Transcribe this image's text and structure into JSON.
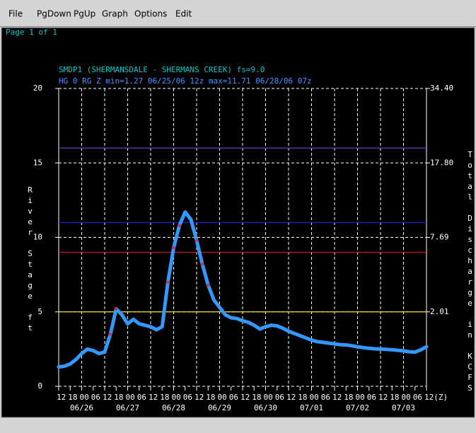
{
  "menu": [
    "File",
    "PgDown",
    "PgUp",
    "Graph",
    "Options",
    "Edit"
  ],
  "page_label": "Page 1 of 1",
  "chart_data": {
    "type": "line",
    "title": "SMDP1 (SHERMANSDALE - SHERMANS CREEK) fs=9.0",
    "subtitle": "HG 0 RG Z min=1.27 06/25/06 12z max=11.71 06/28/06 07z",
    "ylabel": "River Stage ft",
    "y2label": "Total Discharge in KCFS",
    "ylim": [
      0,
      20
    ],
    "yticks": [
      0,
      5,
      10,
      15,
      20
    ],
    "y2ticks": [
      {
        "value": 34.4,
        "label": "34.40"
      },
      {
        "value": 17.8,
        "label": "17.80"
      },
      {
        "value": 7.69,
        "label": "7.69"
      },
      {
        "value": 2.01,
        "label": "2.01"
      }
    ],
    "y2tick_stage": [
      20,
      15,
      10,
      5
    ],
    "grid": true,
    "xlim": [
      "06/25/06 12z",
      "07/03/06 12z"
    ],
    "xticks": [
      {
        "value": "06/25/06 12z",
        "label": "12"
      },
      {
        "value": "06/25/06 18z",
        "label": "18"
      },
      {
        "value": "06/26/06 00z",
        "label": "00"
      },
      {
        "value": "06/26/06 06z",
        "label": "06"
      },
      {
        "value": "06/26/06 12z",
        "label": "12"
      },
      {
        "value": "06/26/06 18z",
        "label": "18"
      },
      {
        "value": "06/27/06 00z",
        "label": "00"
      },
      {
        "value": "06/27/06 06z",
        "label": "06"
      },
      {
        "value": "06/27/06 12z",
        "label": "12"
      },
      {
        "value": "06/27/06 18z",
        "label": "18"
      },
      {
        "value": "06/28/06 00z",
        "label": "00"
      },
      {
        "value": "06/28/06 06z",
        "label": "06"
      },
      {
        "value": "06/28/06 12z",
        "label": "12"
      },
      {
        "value": "06/28/06 18z",
        "label": "18"
      },
      {
        "value": "06/29/06 00z",
        "label": "00"
      },
      {
        "value": "06/29/06 06z",
        "label": "06"
      },
      {
        "value": "06/29/06 12z",
        "label": "12"
      },
      {
        "value": "06/29/06 18z",
        "label": "18"
      },
      {
        "value": "06/30/06 00z",
        "label": "00"
      },
      {
        "value": "06/30/06 06z",
        "label": "06"
      },
      {
        "value": "06/30/06 12z",
        "label": "12"
      },
      {
        "value": "06/30/06 18z",
        "label": "18"
      },
      {
        "value": "07/01/06 00z",
        "label": "00"
      },
      {
        "value": "07/01/06 06z",
        "label": "06"
      },
      {
        "value": "07/01/06 12z",
        "label": "12"
      },
      {
        "value": "07/01/06 18z",
        "label": "18"
      },
      {
        "value": "07/02/06 00z",
        "label": "00"
      },
      {
        "value": "07/02/06 06z",
        "label": "06"
      },
      {
        "value": "07/02/06 12z",
        "label": "12"
      },
      {
        "value": "07/02/06 18z",
        "label": "18"
      },
      {
        "value": "07/03/06 00z",
        "label": "00"
      },
      {
        "value": "07/03/06 06z",
        "label": "06"
      },
      {
        "value": "07/03/06 12z",
        "label": "12(Z)"
      }
    ],
    "xdates": [
      {
        "value": "06/26/06 00z",
        "label": "06/26"
      },
      {
        "value": "06/27/06 00z",
        "label": "06/27"
      },
      {
        "value": "06/28/06 00z",
        "label": "06/28"
      },
      {
        "value": "06/29/06 00z",
        "label": "06/29"
      },
      {
        "value": "06/30/06 00z",
        "label": "06/30"
      },
      {
        "value": "07/01/06 00z",
        "label": "07/01"
      },
      {
        "value": "07/02/06 00z",
        "label": "07/02"
      },
      {
        "value": "07/03/06 00z",
        "label": "07/03"
      }
    ],
    "thresholds": [
      {
        "value": 16,
        "color": "#8a3ad8"
      },
      {
        "value": 11,
        "color": "#2020e0"
      },
      {
        "value": 9,
        "color": "#e01818"
      },
      {
        "value": 5,
        "color": "#e8e020"
      }
    ],
    "x": [
      "06/25/06 12z",
      "06/25/06 15z",
      "06/25/06 18z",
      "06/25/06 21z",
      "06/26/06 00z",
      "06/26/06 03z",
      "06/26/06 06z",
      "06/26/06 09z",
      "06/26/06 12z",
      "06/26/06 15z",
      "06/26/06 18z",
      "06/26/06 21z",
      "06/27/06 00z",
      "06/27/06 03z",
      "06/27/06 06z",
      "06/27/06 09z",
      "06/27/06 12z",
      "06/27/06 15z",
      "06/27/06 18z",
      "06/27/06 21z",
      "06/28/06 00z",
      "06/28/06 03z",
      "06/28/06 06z",
      "06/28/06 09z",
      "06/28/06 12z",
      "06/28/06 15z",
      "06/28/06 18z",
      "06/28/06 21z",
      "06/29/06 00z",
      "06/29/06 03z",
      "06/29/06 06z",
      "06/29/06 09z",
      "06/29/06 12z",
      "06/29/06 15z",
      "06/29/06 18z",
      "06/29/06 21z",
      "06/30/06 00z",
      "06/30/06 03z",
      "06/30/06 06z",
      "06/30/06 09z",
      "06/30/06 12z",
      "06/30/06 15z",
      "06/30/06 18z",
      "06/30/06 21z",
      "07/01/06 00z",
      "07/01/06 03z",
      "07/01/06 06z",
      "07/01/06 09z",
      "07/01/06 12z",
      "07/01/06 15z",
      "07/01/06 18z",
      "07/01/06 21z",
      "07/02/06 00z",
      "07/02/06 03z",
      "07/02/06 06z",
      "07/02/06 09z",
      "07/02/06 12z",
      "07/02/06 15z",
      "07/02/06 18z",
      "07/02/06 21z",
      "07/03/06 00z",
      "07/03/06 03z",
      "07/03/06 06z",
      "07/03/06 09z",
      "07/03/06 12z"
    ],
    "series": [
      {
        "color": "#3399ff",
        "marker_color": "#c03060",
        "values": [
          1.3,
          1.35,
          1.5,
          1.8,
          2.2,
          2.5,
          2.4,
          2.2,
          2.3,
          3.5,
          5.2,
          4.8,
          4.2,
          4.5,
          4.2,
          4.1,
          4.0,
          3.8,
          4.0,
          7.0,
          9.3,
          10.8,
          11.7,
          11.2,
          9.8,
          8.2,
          6.8,
          5.8,
          5.3,
          4.8,
          4.6,
          4.55,
          4.4,
          4.3,
          4.1,
          3.85,
          4.0,
          4.1,
          4.05,
          3.9,
          3.7,
          3.55,
          3.4,
          3.25,
          3.1,
          3.0,
          2.95,
          2.9,
          2.85,
          2.8,
          2.78,
          2.72,
          2.65,
          2.6,
          2.55,
          2.52,
          2.5,
          2.48,
          2.45,
          2.42,
          2.38,
          2.32,
          2.3,
          2.45,
          2.65
        ]
      }
    ]
  }
}
